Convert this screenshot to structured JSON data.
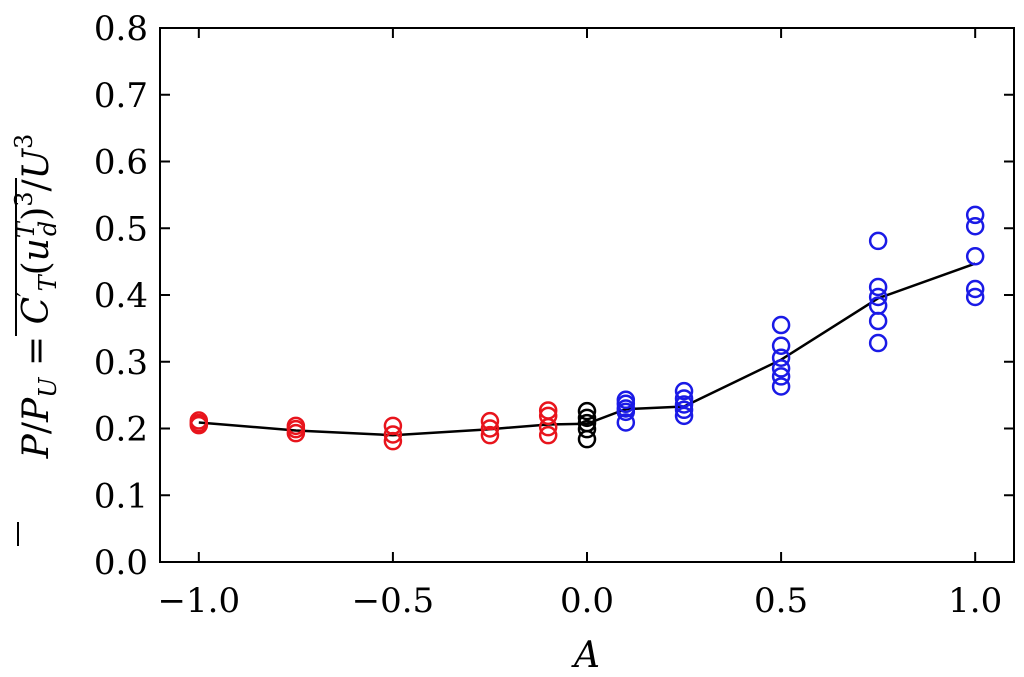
{
  "chart_data": {
    "type": "scatter",
    "title": "",
    "xlabel": "A",
    "ylabel": "P̄/P_U = C′_T (u_d^T)³ / U³",
    "xlim": [
      -1.1,
      1.1
    ],
    "ylim": [
      0.0,
      0.8
    ],
    "x_ticks": [
      -1.0,
      -0.5,
      0.0,
      0.5,
      1.0
    ],
    "x_tick_labels": [
      "−1.0",
      "−0.5",
      "0.0",
      "0.5",
      "1.0"
    ],
    "y_ticks": [
      0.0,
      0.1,
      0.2,
      0.3,
      0.4,
      0.5,
      0.6,
      0.7,
      0.8
    ],
    "y_tick_labels": [
      "0.0",
      "0.1",
      "0.2",
      "0.3",
      "0.4",
      "0.5",
      "0.6",
      "0.7",
      "0.8"
    ],
    "grid": false,
    "legend": "none",
    "series": [
      {
        "marker": "open-circle",
        "color": "#e8141c",
        "points": [
          [
            -1.0,
            0.212
          ],
          [
            -1.0,
            0.208
          ],
          [
            -1.0,
            0.205
          ],
          [
            -0.75,
            0.204
          ],
          [
            -0.75,
            0.199
          ],
          [
            -0.75,
            0.193
          ],
          [
            -0.5,
            0.204
          ],
          [
            -0.5,
            0.191
          ],
          [
            -0.5,
            0.181
          ],
          [
            -0.25,
            0.211
          ],
          [
            -0.25,
            0.2
          ],
          [
            -0.25,
            0.19
          ],
          [
            -0.1,
            0.227
          ],
          [
            -0.1,
            0.219
          ],
          [
            -0.1,
            0.202
          ],
          [
            -0.1,
            0.19
          ]
        ]
      },
      {
        "marker": "open-circle",
        "color": "#000000",
        "points": [
          [
            0.0,
            0.226
          ],
          [
            0.0,
            0.216
          ],
          [
            0.0,
            0.208
          ],
          [
            0.0,
            0.199
          ],
          [
            0.0,
            0.184
          ]
        ]
      },
      {
        "marker": "open-circle",
        "color": "#1a1ae6",
        "points": [
          [
            0.1,
            0.243
          ],
          [
            0.1,
            0.237
          ],
          [
            0.1,
            0.23
          ],
          [
            0.1,
            0.225
          ],
          [
            0.1,
            0.209
          ],
          [
            0.25,
            0.256
          ],
          [
            0.25,
            0.245
          ],
          [
            0.25,
            0.236
          ],
          [
            0.25,
            0.228
          ],
          [
            0.25,
            0.219
          ],
          [
            0.5,
            0.355
          ],
          [
            0.5,
            0.324
          ],
          [
            0.5,
            0.306
          ],
          [
            0.5,
            0.29
          ],
          [
            0.5,
            0.278
          ],
          [
            0.5,
            0.263
          ],
          [
            0.75,
            0.481
          ],
          [
            0.75,
            0.412
          ],
          [
            0.75,
            0.397
          ],
          [
            0.75,
            0.384
          ],
          [
            0.75,
            0.361
          ],
          [
            0.75,
            0.328
          ],
          [
            1.0,
            0.52
          ],
          [
            1.0,
            0.503
          ],
          [
            1.0,
            0.458
          ],
          [
            1.0,
            0.409
          ],
          [
            1.0,
            0.397
          ]
        ]
      }
    ],
    "mean_line": {
      "color": "#000000",
      "x": [
        -1.0,
        -0.75,
        -0.5,
        -0.25,
        -0.1,
        0.0,
        0.1,
        0.25,
        0.5,
        0.75,
        1.0
      ],
      "y": [
        0.209,
        0.197,
        0.19,
        0.199,
        0.206,
        0.207,
        0.229,
        0.233,
        0.303,
        0.395,
        0.447
      ]
    }
  }
}
